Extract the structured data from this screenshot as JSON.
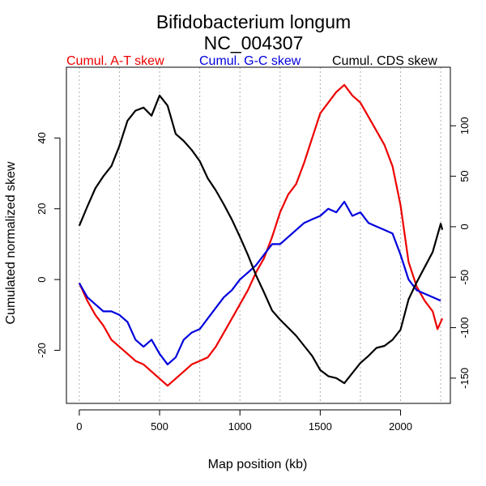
{
  "chart_data": {
    "type": "line",
    "title": "Bifidobacterium longum",
    "subtitle": "NC_004307",
    "xlabel": "Map position (kb)",
    "ylabel_left": "Cumulated normalized skew",
    "xlim": [
      -80,
      2310
    ],
    "ylim_left": [
      -35,
      60
    ],
    "ylim_right": [
      -175,
      158
    ],
    "x_ticks": [
      0,
      500,
      1000,
      1500,
      2000
    ],
    "y_ticks_left": [
      -20,
      0,
      20,
      40
    ],
    "y_ticks_right": [
      -150,
      -100,
      -50,
      0,
      50,
      100
    ],
    "grid_x": [
      0,
      250,
      500,
      750,
      1000,
      1250,
      1500,
      1750,
      2000,
      2250
    ],
    "legend_placement": "top",
    "series": [
      {
        "name": "Cumul. A-T skew",
        "axis": "left",
        "color": "#ee0000",
        "x": [
          0,
          50,
          100,
          150,
          200,
          250,
          300,
          350,
          400,
          450,
          500,
          550,
          600,
          650,
          700,
          750,
          800,
          850,
          900,
          950,
          1000,
          1050,
          1100,
          1150,
          1200,
          1250,
          1300,
          1350,
          1400,
          1450,
          1500,
          1550,
          1600,
          1650,
          1700,
          1750,
          1800,
          1850,
          1900,
          1950,
          2000,
          2050,
          2100,
          2150,
          2200,
          2230,
          2260
        ],
        "y": [
          -1,
          -6,
          -10,
          -13,
          -17,
          -19,
          -21,
          -23,
          -24,
          -26,
          -28,
          -30,
          -28,
          -26,
          -24,
          -23,
          -22,
          -19,
          -15,
          -11,
          -7,
          -3,
          2,
          6,
          12,
          19,
          24,
          27,
          33,
          40,
          47,
          50,
          53,
          55,
          52,
          50,
          46,
          42,
          38,
          32,
          21,
          5,
          -2,
          -6,
          -9,
          -14,
          -11
        ]
      },
      {
        "name": "Cumul. G-C skew",
        "axis": "left",
        "color": "#0000dd",
        "x": [
          0,
          50,
          100,
          150,
          200,
          250,
          300,
          350,
          400,
          450,
          500,
          550,
          600,
          650,
          700,
          750,
          800,
          850,
          900,
          950,
          1000,
          1050,
          1100,
          1150,
          1200,
          1250,
          1300,
          1350,
          1400,
          1450,
          1500,
          1550,
          1600,
          1650,
          1700,
          1750,
          1800,
          1850,
          1900,
          1950,
          2000,
          2050,
          2100,
          2150,
          2200,
          2250
        ],
        "y": [
          -1,
          -5,
          -7,
          -9,
          -9,
          -10,
          -12,
          -17,
          -19,
          -17,
          -21,
          -24,
          -22,
          -17,
          -15,
          -14,
          -11,
          -8,
          -5,
          -3,
          0,
          2,
          4,
          7,
          10,
          10,
          12,
          14,
          16,
          17,
          18,
          20,
          19,
          22,
          18,
          19,
          16,
          15,
          14,
          13,
          7,
          0,
          -3,
          -4,
          -5,
          -6
        ]
      },
      {
        "name": "Cumul. CDS skew",
        "axis": "right",
        "color": "#000000",
        "x": [
          0,
          50,
          100,
          150,
          200,
          250,
          300,
          350,
          400,
          450,
          500,
          550,
          600,
          650,
          700,
          750,
          800,
          850,
          900,
          950,
          1000,
          1050,
          1100,
          1150,
          1200,
          1250,
          1300,
          1350,
          1400,
          1450,
          1500,
          1550,
          1600,
          1650,
          1700,
          1750,
          1800,
          1850,
          1900,
          1950,
          2000,
          2050,
          2100,
          2150,
          2200,
          2250,
          2260
        ],
        "y": [
          1,
          20,
          38,
          50,
          60,
          80,
          105,
          115,
          118,
          110,
          130,
          120,
          92,
          85,
          76,
          65,
          48,
          36,
          22,
          7,
          -10,
          -28,
          -48,
          -65,
          -83,
          -92,
          -100,
          -108,
          -118,
          -128,
          -142,
          -148,
          -150,
          -155,
          -145,
          -135,
          -128,
          -120,
          -118,
          -112,
          -102,
          -72,
          -55,
          -40,
          -25,
          3,
          -3
        ]
      }
    ]
  }
}
